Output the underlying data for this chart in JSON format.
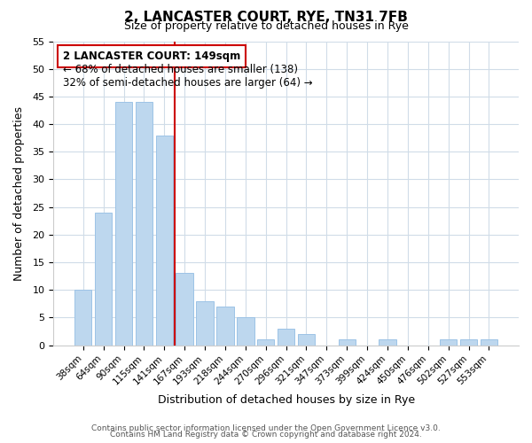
{
  "title": "2, LANCASTER COURT, RYE, TN31 7FB",
  "subtitle": "Size of property relative to detached houses in Rye",
  "xlabel": "Distribution of detached houses by size in Rye",
  "ylabel": "Number of detached properties",
  "bar_labels": [
    "38sqm",
    "64sqm",
    "90sqm",
    "115sqm",
    "141sqm",
    "167sqm",
    "193sqm",
    "218sqm",
    "244sqm",
    "270sqm",
    "296sqm",
    "321sqm",
    "347sqm",
    "373sqm",
    "399sqm",
    "424sqm",
    "450sqm",
    "476sqm",
    "502sqm",
    "527sqm",
    "553sqm"
  ],
  "bar_values": [
    10,
    24,
    44,
    44,
    38,
    13,
    8,
    7,
    5,
    1,
    3,
    2,
    0,
    1,
    0,
    1,
    0,
    0,
    1,
    1,
    1
  ],
  "bar_color": "#bdd7ee",
  "bar_edge_color": "#9dc3e6",
  "red_line_x": 4.5,
  "annotation_title": "2 LANCASTER COURT: 149sqm",
  "annotation_line1": "← 68% of detached houses are smaller (138)",
  "annotation_line2": "32% of semi-detached houses are larger (64) →",
  "annotation_box_color": "#ffffff",
  "annotation_box_edge": "#cc0000",
  "red_line_color": "#cc0000",
  "ylim": [
    0,
    55
  ],
  "yticks": [
    0,
    5,
    10,
    15,
    20,
    25,
    30,
    35,
    40,
    45,
    50,
    55
  ],
  "footer1": "Contains HM Land Registry data © Crown copyright and database right 2024.",
  "footer2": "Contains public sector information licensed under the Open Government Licence v3.0.",
  "bg_color": "#ffffff",
  "grid_color": "#d0dce8"
}
